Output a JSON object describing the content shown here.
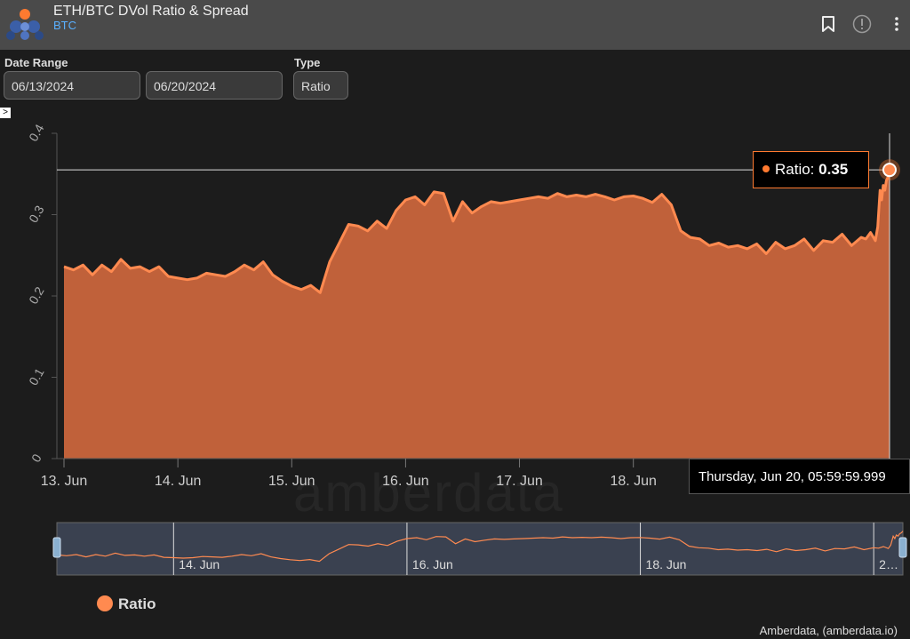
{
  "header": {
    "title": "ETH/BTC DVol Ratio & Spread",
    "subtitle": "BTC",
    "icons": [
      "bookmark-icon",
      "info-icon",
      "more-vertical-icon"
    ]
  },
  "filters": {
    "date_range_label": "Date Range",
    "start_date": "06/13/2024",
    "end_date": "06/20/2024",
    "type_label": "Type",
    "type_value": "Ratio"
  },
  "toggle_symbol": ">",
  "tooltip": {
    "series": "Ratio:",
    "value": "0.35",
    "date": "Thursday, Jun 20, 05:59:59.999"
  },
  "watermark": "amberdata",
  "legend": {
    "label": "Ratio"
  },
  "credit": "Amberdata, (amberdata.io)",
  "colors": {
    "accent": "#ff7a30",
    "fill": "#c0613a",
    "background": "#1c1c1c"
  },
  "chart_data": {
    "type": "area",
    "series": [
      {
        "name": "Ratio"
      }
    ],
    "ylim": [
      0,
      0.4
    ],
    "yticks": [
      "0",
      "0.1",
      "0.2",
      "0.3",
      "0.4"
    ],
    "xlim": [
      "2024-06-13T00:00",
      "2024-06-20T06:00"
    ],
    "xticks": [
      {
        "label": "13. Jun",
        "date": "2024-06-13T00:00"
      },
      {
        "label": "14. Jun",
        "date": "2024-06-14T00:00"
      },
      {
        "label": "15. Jun",
        "date": "2024-06-15T00:00"
      },
      {
        "label": "16. Jun",
        "date": "2024-06-16T00:00"
      },
      {
        "label": "17. Jun",
        "date": "2024-06-17T00:00"
      },
      {
        "label": "18. Jun",
        "date": "2024-06-18T00:00"
      }
    ],
    "navigator_ticks": [
      {
        "label": "14. Jun",
        "date": "2024-06-14T00:00"
      },
      {
        "label": "16. Jun",
        "date": "2024-06-16T00:00"
      },
      {
        "label": "18. Jun",
        "date": "2024-06-18T00:00"
      },
      {
        "label": "2…",
        "date": "2024-06-20T00:00"
      }
    ],
    "crosshair_value": 0.355,
    "points": [
      [
        "2024-06-13T00:00",
        0.236
      ],
      [
        "2024-06-13T02:00",
        0.232
      ],
      [
        "2024-06-13T04:00",
        0.238
      ],
      [
        "2024-06-13T06:00",
        0.226
      ],
      [
        "2024-06-13T08:00",
        0.238
      ],
      [
        "2024-06-13T10:00",
        0.23
      ],
      [
        "2024-06-13T12:00",
        0.245
      ],
      [
        "2024-06-13T14:00",
        0.234
      ],
      [
        "2024-06-13T16:00",
        0.236
      ],
      [
        "2024-06-13T18:00",
        0.23
      ],
      [
        "2024-06-13T20:00",
        0.236
      ],
      [
        "2024-06-13T22:00",
        0.224
      ],
      [
        "2024-06-14T00:00",
        0.222
      ],
      [
        "2024-06-14T02:00",
        0.22
      ],
      [
        "2024-06-14T04:00",
        0.222
      ],
      [
        "2024-06-14T06:00",
        0.228
      ],
      [
        "2024-06-14T08:00",
        0.226
      ],
      [
        "2024-06-14T10:00",
        0.224
      ],
      [
        "2024-06-14T12:00",
        0.23
      ],
      [
        "2024-06-14T14:00",
        0.238
      ],
      [
        "2024-06-14T16:00",
        0.232
      ],
      [
        "2024-06-14T18:00",
        0.242
      ],
      [
        "2024-06-14T20:00",
        0.226
      ],
      [
        "2024-06-14T22:00",
        0.218
      ],
      [
        "2024-06-15T00:00",
        0.212
      ],
      [
        "2024-06-15T02:00",
        0.208
      ],
      [
        "2024-06-15T04:00",
        0.213
      ],
      [
        "2024-06-15T06:00",
        0.204
      ],
      [
        "2024-06-15T08:00",
        0.242
      ],
      [
        "2024-06-15T10:00",
        0.265
      ],
      [
        "2024-06-15T12:00",
        0.288
      ],
      [
        "2024-06-15T14:00",
        0.286
      ],
      [
        "2024-06-15T16:00",
        0.28
      ],
      [
        "2024-06-15T18:00",
        0.292
      ],
      [
        "2024-06-15T20:00",
        0.283
      ],
      [
        "2024-06-15T22:00",
        0.305
      ],
      [
        "2024-06-16T00:00",
        0.318
      ],
      [
        "2024-06-16T02:00",
        0.322
      ],
      [
        "2024-06-16T04:00",
        0.312
      ],
      [
        "2024-06-16T06:00",
        0.328
      ],
      [
        "2024-06-16T08:00",
        0.326
      ],
      [
        "2024-06-16T10:00",
        0.292
      ],
      [
        "2024-06-16T12:00",
        0.316
      ],
      [
        "2024-06-16T14:00",
        0.302
      ],
      [
        "2024-06-16T16:00",
        0.31
      ],
      [
        "2024-06-16T18:00",
        0.316
      ],
      [
        "2024-06-16T20:00",
        0.314
      ],
      [
        "2024-06-16T22:00",
        0.316
      ],
      [
        "2024-06-17T00:00",
        0.318
      ],
      [
        "2024-06-17T02:00",
        0.32
      ],
      [
        "2024-06-17T04:00",
        0.322
      ],
      [
        "2024-06-17T06:00",
        0.32
      ],
      [
        "2024-06-17T08:00",
        0.326
      ],
      [
        "2024-06-17T10:00",
        0.322
      ],
      [
        "2024-06-17T12:00",
        0.324
      ],
      [
        "2024-06-17T14:00",
        0.322
      ],
      [
        "2024-06-17T16:00",
        0.325
      ],
      [
        "2024-06-17T18:00",
        0.322
      ],
      [
        "2024-06-17T20:00",
        0.318
      ],
      [
        "2024-06-17T22:00",
        0.322
      ],
      [
        "2024-06-18T00:00",
        0.323
      ],
      [
        "2024-06-18T02:00",
        0.32
      ],
      [
        "2024-06-18T04:00",
        0.315
      ],
      [
        "2024-06-18T06:00",
        0.325
      ],
      [
        "2024-06-18T08:00",
        0.312
      ],
      [
        "2024-06-18T10:00",
        0.28
      ],
      [
        "2024-06-18T12:00",
        0.272
      ],
      [
        "2024-06-18T14:00",
        0.27
      ],
      [
        "2024-06-18T16:00",
        0.262
      ],
      [
        "2024-06-18T18:00",
        0.265
      ],
      [
        "2024-06-18T20:00",
        0.26
      ],
      [
        "2024-06-18T22:00",
        0.262
      ],
      [
        "2024-06-19T00:00",
        0.258
      ],
      [
        "2024-06-19T02:00",
        0.264
      ],
      [
        "2024-06-19T04:00",
        0.252
      ],
      [
        "2024-06-19T06:00",
        0.266
      ],
      [
        "2024-06-19T08:00",
        0.258
      ],
      [
        "2024-06-19T10:00",
        0.262
      ],
      [
        "2024-06-19T12:00",
        0.27
      ],
      [
        "2024-06-19T14:00",
        0.256
      ],
      [
        "2024-06-19T16:00",
        0.268
      ],
      [
        "2024-06-19T18:00",
        0.266
      ],
      [
        "2024-06-19T20:00",
        0.276
      ],
      [
        "2024-06-19T22:00",
        0.262
      ],
      [
        "2024-06-20T00:00",
        0.272
      ],
      [
        "2024-06-20T01:00",
        0.27
      ],
      [
        "2024-06-20T02:00",
        0.278
      ],
      [
        "2024-06-20T03:00",
        0.268
      ],
      [
        "2024-06-20T03:30",
        0.285
      ],
      [
        "2024-06-20T04:00",
        0.33
      ],
      [
        "2024-06-20T04:20",
        0.318
      ],
      [
        "2024-06-20T04:40",
        0.336
      ],
      [
        "2024-06-20T05:00",
        0.33
      ],
      [
        "2024-06-20T05:20",
        0.342
      ],
      [
        "2024-06-20T05:40",
        0.346
      ],
      [
        "2024-06-20T06:00",
        0.355
      ]
    ]
  }
}
